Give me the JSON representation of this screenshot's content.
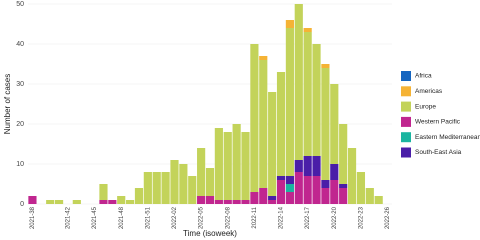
{
  "chart_data": {
    "type": "bar",
    "stacked": true,
    "x_label": "Time (isoweek)",
    "y_label": "Number of cases",
    "categories": [
      "2021-38",
      null,
      null,
      null,
      "2021-42",
      null,
      null,
      "2021-45",
      null,
      null,
      "2021-48",
      null,
      null,
      "2021-51",
      null,
      null,
      "2022-02",
      null,
      null,
      "2022-05",
      null,
      null,
      "2022-08",
      null,
      null,
      "2022-11",
      null,
      null,
      "2022-14",
      null,
      null,
      "2022-17",
      null,
      null,
      "2022-20",
      null,
      null,
      "2022-23",
      null,
      null,
      "2022-26"
    ],
    "series": [
      {
        "name": "Africa",
        "color": "#1565c0",
        "values": [
          0,
          0,
          0,
          0,
          0,
          0,
          0,
          0,
          0,
          0,
          0,
          0,
          0,
          0,
          0,
          0,
          0,
          0,
          0,
          0,
          0,
          0,
          0,
          0,
          0,
          0,
          0,
          0,
          0,
          0,
          0,
          0,
          0,
          0,
          0,
          0,
          0,
          0,
          0,
          0,
          0
        ]
      },
      {
        "name": "Americas",
        "color": "#f5b335",
        "values": [
          0,
          0,
          0,
          0,
          0,
          0,
          0,
          0,
          0,
          0,
          0,
          0,
          0,
          0,
          0,
          0,
          0,
          0,
          0,
          0,
          0,
          0,
          0,
          0,
          0,
          0,
          1,
          0,
          0,
          2,
          0,
          1,
          0,
          1,
          0,
          0,
          0,
          0,
          0,
          0,
          0
        ]
      },
      {
        "name": "Europe",
        "color": "#c3d35a",
        "values": [
          0,
          0,
          1,
          1,
          0,
          1,
          0,
          0,
          4,
          0,
          2,
          1,
          4,
          8,
          8,
          8,
          11,
          10,
          7,
          12,
          7,
          18,
          17,
          19,
          17,
          37,
          32,
          26,
          26,
          37,
          39,
          31,
          28,
          28,
          20,
          15,
          14,
          8,
          4,
          2,
          0
        ]
      },
      {
        "name": "Western Pacific",
        "color": "#c0268f",
        "values": [
          2,
          0,
          0,
          0,
          0,
          0,
          0,
          0,
          1,
          1,
          0,
          0,
          0,
          0,
          0,
          0,
          0,
          0,
          0,
          2,
          2,
          1,
          1,
          1,
          1,
          3,
          4,
          1,
          6,
          3,
          8,
          7,
          7,
          4,
          6,
          4,
          0,
          0,
          0,
          0,
          0
        ]
      },
      {
        "name": "Eastern Mediterranean",
        "color": "#1ab5a0",
        "values": [
          0,
          0,
          0,
          0,
          0,
          0,
          0,
          0,
          0,
          0,
          0,
          0,
          0,
          0,
          0,
          0,
          0,
          0,
          0,
          0,
          0,
          0,
          0,
          0,
          0,
          0,
          0,
          0,
          0,
          2,
          0,
          0,
          0,
          0,
          0,
          0,
          0,
          0,
          0,
          0,
          0
        ]
      },
      {
        "name": "South-East Asia",
        "color": "#4a1ea8",
        "values": [
          0,
          0,
          0,
          0,
          0,
          0,
          0,
          0,
          0,
          0,
          0,
          0,
          0,
          0,
          0,
          0,
          0,
          0,
          0,
          0,
          0,
          0,
          0,
          0,
          0,
          0,
          0,
          1,
          1,
          2,
          3,
          5,
          5,
          2,
          4,
          1,
          0,
          0,
          0,
          0,
          0
        ]
      }
    ],
    "ylim": [
      0,
      50
    ],
    "yticks": [
      0,
      10,
      20,
      30,
      40,
      50
    ],
    "grid": true,
    "legend": "right"
  }
}
